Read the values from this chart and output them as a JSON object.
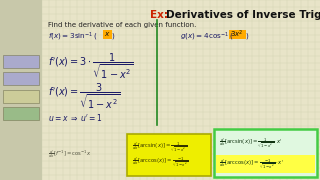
{
  "bg_color": "#b8b89a",
  "sidebar_color": "#c8c8aa",
  "panel_color": "#e8e4c8",
  "grid_color": "#ccd0b0",
  "title_ex": "Ex:",
  "title_ex_color": "#cc2200",
  "title_rest": "  Derivatives of Inverse Trig Functions",
  "title_color": "#111111",
  "subtitle": "Find the derivative of each given function.",
  "text_color": "#1a1a66",
  "divider_color": "#228822",
  "highlight_color": "#ffaa00",
  "yellow_box_color": "#eeee00",
  "green_box_color": "#44cc44",
  "green_box_bg": "#e0f8e0",
  "yellow_highlight_color": "#ffff44"
}
